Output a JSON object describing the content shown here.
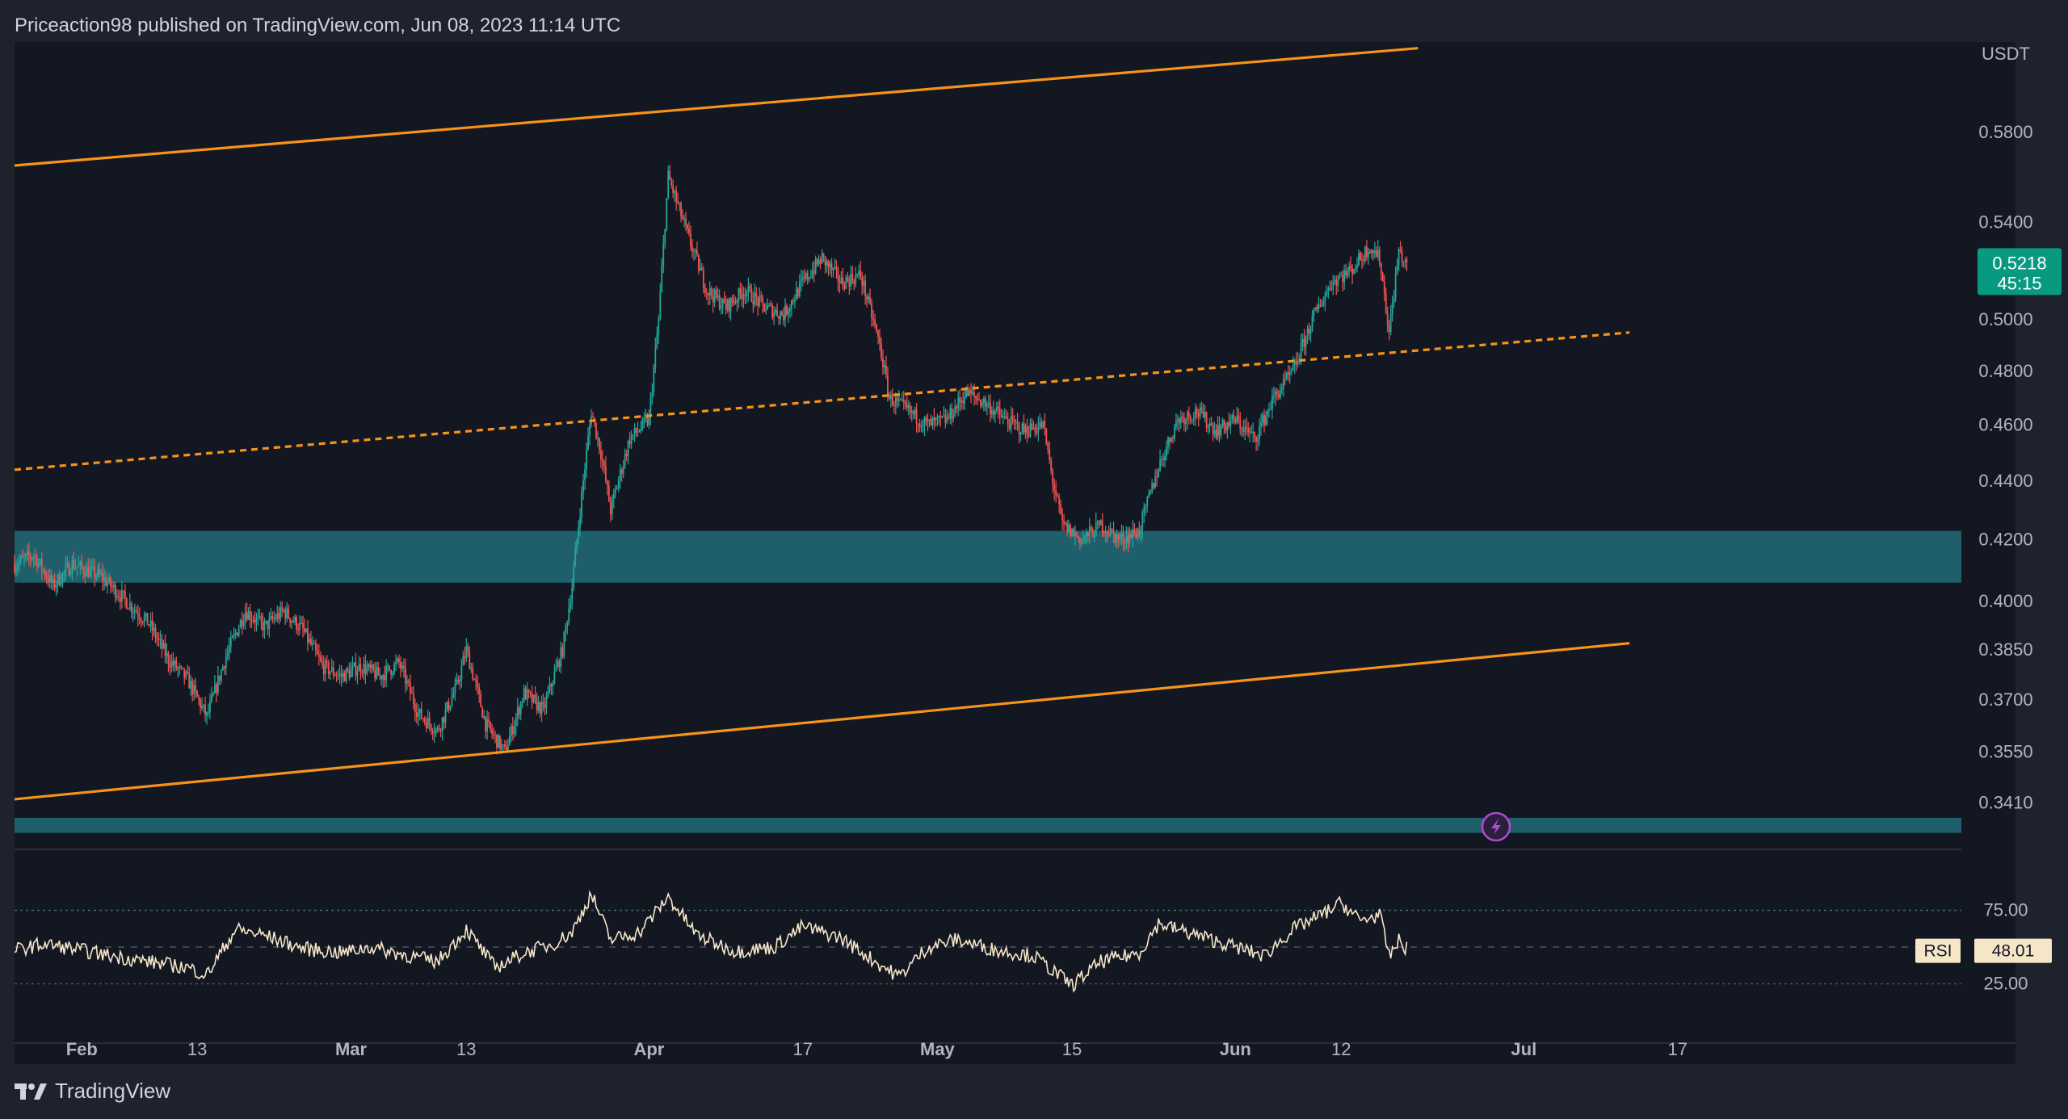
{
  "header": {
    "publish_text": "Priceaction98 published on TradingView.com, Jun 08, 2023 11:14 UTC"
  },
  "footer": {
    "brand": "TradingView"
  },
  "colors": {
    "background": "#131722",
    "frame": "#1e222d",
    "up_candle": "#26a69a",
    "down_candle": "#ef5350",
    "channel_line": "#f7931a",
    "support_zone": "#1f5f6b",
    "rsi_line": "#f5e6c8",
    "axis_text": "#b2b5be",
    "price_badge": "#089981"
  },
  "chart_data": {
    "type": "candlestick",
    "symbol_unit": "USDT",
    "y_axis": {
      "unit_label": "USDT",
      "ticks": [
        0.58,
        0.54,
        0.5,
        0.48,
        0.46,
        0.44,
        0.42,
        0.4,
        0.385,
        0.37,
        0.355,
        0.341
      ],
      "tick_labels": [
        "0.5800",
        "0.5400",
        "0.5000",
        "0.4800",
        "0.4600",
        "0.4400",
        "0.4200",
        "0.4000",
        "0.3850",
        "0.3700",
        "0.3550",
        "0.3410"
      ],
      "scale": "log"
    },
    "x_axis": {
      "tick_labels": [
        "Feb",
        "13",
        "Mar",
        "13",
        "Apr",
        "17",
        "May",
        "15",
        "Jun",
        "12",
        "Jul",
        "17"
      ],
      "tick_dates": [
        "2023-02-01",
        "2023-02-13",
        "2023-03-01",
        "2023-03-13",
        "2023-04-01",
        "2023-04-17",
        "2023-05-01",
        "2023-05-15",
        "2023-06-01",
        "2023-06-12",
        "2023-07-01",
        "2023-07-17"
      ],
      "bold_labels": [
        "Feb",
        "Mar",
        "Apr",
        "May",
        "Jun",
        "Jul"
      ]
    },
    "price_path": [
      [
        "2023-01-25",
        0.412
      ],
      [
        "2023-01-27",
        0.415
      ],
      [
        "2023-01-29",
        0.405
      ],
      [
        "2023-01-31",
        0.412
      ],
      [
        "2023-02-03",
        0.408
      ],
      [
        "2023-02-05",
        0.402
      ],
      [
        "2023-02-08",
        0.393
      ],
      [
        "2023-02-10",
        0.382
      ],
      [
        "2023-02-12",
        0.376
      ],
      [
        "2023-02-14",
        0.365
      ],
      [
        "2023-02-16",
        0.383
      ],
      [
        "2023-02-18",
        0.397
      ],
      [
        "2023-02-20",
        0.392
      ],
      [
        "2023-02-22",
        0.397
      ],
      [
        "2023-02-24",
        0.391
      ],
      [
        "2023-02-26",
        0.38
      ],
      [
        "2023-02-28",
        0.377
      ],
      [
        "2023-03-02",
        0.38
      ],
      [
        "2023-03-04",
        0.377
      ],
      [
        "2023-03-06",
        0.381
      ],
      [
        "2023-03-08",
        0.366
      ],
      [
        "2023-03-10",
        0.361
      ],
      [
        "2023-03-12",
        0.374
      ],
      [
        "2023-03-13",
        0.385
      ],
      [
        "2023-03-15",
        0.363
      ],
      [
        "2023-03-17",
        0.355
      ],
      [
        "2023-03-19",
        0.372
      ],
      [
        "2023-03-21",
        0.367
      ],
      [
        "2023-03-23",
        0.385
      ],
      [
        "2023-03-24",
        0.405
      ],
      [
        "2023-03-26",
        0.465
      ],
      [
        "2023-03-27",
        0.45
      ],
      [
        "2023-03-28",
        0.43
      ],
      [
        "2023-03-30",
        0.455
      ],
      [
        "2023-04-01",
        0.462
      ],
      [
        "2023-04-02",
        0.5
      ],
      [
        "2023-04-03",
        0.56
      ],
      [
        "2023-04-05",
        0.535
      ],
      [
        "2023-04-07",
        0.512
      ],
      [
        "2023-04-09",
        0.505
      ],
      [
        "2023-04-11",
        0.512
      ],
      [
        "2023-04-13",
        0.505
      ],
      [
        "2023-04-15",
        0.502
      ],
      [
        "2023-04-17",
        0.515
      ],
      [
        "2023-04-19",
        0.525
      ],
      [
        "2023-04-21",
        0.515
      ],
      [
        "2023-04-23",
        0.518
      ],
      [
        "2023-04-25",
        0.49
      ],
      [
        "2023-04-26",
        0.47
      ],
      [
        "2023-04-28",
        0.465
      ],
      [
        "2023-04-30",
        0.46
      ],
      [
        "2023-05-02",
        0.462
      ],
      [
        "2023-05-04",
        0.472
      ],
      [
        "2023-05-06",
        0.468
      ],
      [
        "2023-05-08",
        0.462
      ],
      [
        "2023-05-10",
        0.458
      ],
      [
        "2023-05-12",
        0.46
      ],
      [
        "2023-05-13",
        0.44
      ],
      [
        "2023-05-14",
        0.425
      ],
      [
        "2023-05-16",
        0.42
      ],
      [
        "2023-05-18",
        0.425
      ],
      [
        "2023-05-20",
        0.42
      ],
      [
        "2023-05-22",
        0.423
      ],
      [
        "2023-05-24",
        0.445
      ],
      [
        "2023-05-26",
        0.462
      ],
      [
        "2023-05-28",
        0.465
      ],
      [
        "2023-05-30",
        0.458
      ],
      [
        "2023-06-01",
        0.462
      ],
      [
        "2023-06-03",
        0.455
      ],
      [
        "2023-06-05",
        0.47
      ],
      [
        "2023-06-07",
        0.48
      ],
      [
        "2023-06-09",
        0.5
      ],
      [
        "2023-06-11",
        0.515
      ],
      [
        "2023-06-13",
        0.52
      ],
      [
        "2023-06-15",
        0.53
      ],
      [
        "2023-06-16",
        0.525
      ],
      [
        "2023-06-17",
        0.495
      ],
      [
        "2023-06-18",
        0.528
      ],
      [
        "2023-06-19",
        0.52
      ]
    ],
    "channel_upper": [
      [
        "2023-01-25",
        0.565
      ],
      [
        "2023-06-20",
        0.62
      ]
    ],
    "channel_mid": [
      [
        "2023-01-25",
        0.444
      ],
      [
        "2023-07-12",
        0.495
      ]
    ],
    "channel_lower": [
      [
        "2023-01-25",
        0.342
      ],
      [
        "2023-07-12",
        0.387
      ]
    ],
    "support_zones": [
      [
        0.406,
        0.423
      ],
      [
        0.333,
        0.337
      ]
    ],
    "last_price": {
      "value": 0.5218,
      "label": "0.5218",
      "countdown": "45:15"
    },
    "rsi": {
      "name": "RSI",
      "value_label": "48.01",
      "levels": [
        75,
        25
      ],
      "level_labels": [
        "75.00",
        "25.00"
      ],
      "path": [
        [
          "2023-01-25",
          48
        ],
        [
          "2023-01-28",
          52
        ],
        [
          "2023-01-31",
          49
        ],
        [
          "2023-02-04",
          44
        ],
        [
          "2023-02-08",
          40
        ],
        [
          "2023-02-12",
          36
        ],
        [
          "2023-02-14",
          31
        ],
        [
          "2023-02-17",
          62
        ],
        [
          "2023-02-20",
          58
        ],
        [
          "2023-02-24",
          49
        ],
        [
          "2023-02-28",
          46
        ],
        [
          "2023-03-03",
          50
        ],
        [
          "2023-03-07",
          44
        ],
        [
          "2023-03-10",
          40
        ],
        [
          "2023-03-13",
          62
        ],
        [
          "2023-03-16",
          36
        ],
        [
          "2023-03-19",
          46
        ],
        [
          "2023-03-22",
          52
        ],
        [
          "2023-03-24",
          60
        ],
        [
          "2023-03-26",
          86
        ],
        [
          "2023-03-28",
          55
        ],
        [
          "2023-03-31",
          60
        ],
        [
          "2023-04-03",
          84
        ],
        [
          "2023-04-06",
          58
        ],
        [
          "2023-04-10",
          47
        ],
        [
          "2023-04-14",
          50
        ],
        [
          "2023-04-17",
          64
        ],
        [
          "2023-04-21",
          56
        ],
        [
          "2023-04-25",
          38
        ],
        [
          "2023-04-27",
          30
        ],
        [
          "2023-04-30",
          50
        ],
        [
          "2023-05-03",
          55
        ],
        [
          "2023-05-07",
          48
        ],
        [
          "2023-05-11",
          44
        ],
        [
          "2023-05-13",
          34
        ],
        [
          "2023-05-15",
          24
        ],
        [
          "2023-05-18",
          40
        ],
        [
          "2023-05-22",
          46
        ],
        [
          "2023-05-24",
          66
        ],
        [
          "2023-05-27",
          60
        ],
        [
          "2023-05-31",
          52
        ],
        [
          "2023-06-04",
          44
        ],
        [
          "2023-06-07",
          62
        ],
        [
          "2023-06-10",
          72
        ],
        [
          "2023-06-12",
          80
        ],
        [
          "2023-06-14",
          68
        ],
        [
          "2023-06-16",
          72
        ],
        [
          "2023-06-17",
          44
        ],
        [
          "2023-06-18",
          54
        ],
        [
          "2023-06-19",
          48
        ]
      ]
    }
  }
}
